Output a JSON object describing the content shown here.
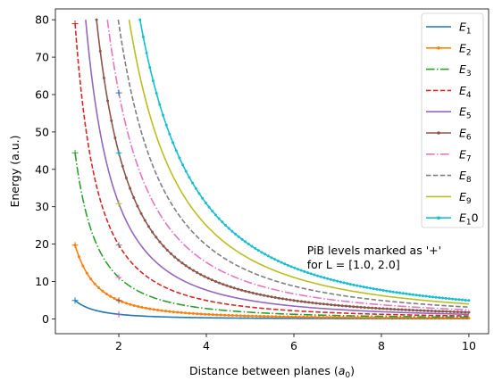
{
  "chart_data": {
    "type": "line",
    "xlabel": "Distance between planes (a0)",
    "ylabel": "Energy (a.u.)",
    "xlim": [
      0.55,
      10.45
    ],
    "ylim": [
      -3.95,
      82.9
    ],
    "xticks": [
      2,
      4,
      6,
      8,
      10
    ],
    "yticks": [
      0,
      10,
      20,
      30,
      40,
      50,
      60,
      70,
      80
    ],
    "legend_position": "top-right",
    "annotation": [
      "PiB levels marked as '+'",
      "for L = [1.0, 2.0]"
    ],
    "energy_model": "E_n(L) = 4.9348 * n^2 / L^2",
    "x_range": [
      1.0,
      10.0
    ],
    "energy_cap": 80,
    "series": [
      {
        "name": "E1",
        "legend_sub": "1",
        "n": 1,
        "color": "#1f77b4",
        "style": "solid",
        "markers": false
      },
      {
        "name": "E2",
        "legend_sub": "2",
        "n": 2,
        "color": "#ff7f0e",
        "style": "solid",
        "markers": true
      },
      {
        "name": "E3",
        "legend_sub": "3",
        "n": 3,
        "color": "#2ca02c",
        "style": "dashdot",
        "markers": false
      },
      {
        "name": "E4",
        "legend_sub": "4",
        "n": 4,
        "color": "#d62728",
        "style": "dashed",
        "markers": false
      },
      {
        "name": "E5",
        "legend_sub": "5",
        "n": 5,
        "color": "#9467bd",
        "style": "solid",
        "markers": false
      },
      {
        "name": "E6",
        "legend_sub": "6",
        "n": 6,
        "color": "#8c564b",
        "style": "solid",
        "markers": true
      },
      {
        "name": "E7",
        "legend_sub": "7",
        "n": 7,
        "color": "#e377c2",
        "style": "dashdot",
        "markers": false
      },
      {
        "name": "E8",
        "legend_sub": "8",
        "n": 8,
        "color": "#7f7f7f",
        "style": "dashed",
        "markers": false
      },
      {
        "name": "E9",
        "legend_sub": "9",
        "n": 9,
        "color": "#bcbd22",
        "style": "solid",
        "markers": false
      },
      {
        "name": "E10",
        "legend_sub": "1",
        "legend_tail": "0",
        "n": 10,
        "color": "#17becf",
        "style": "solid",
        "markers": true
      }
    ],
    "pib_points": [
      {
        "x": 1.0,
        "y": 4.93,
        "color": "#1f77b4"
      },
      {
        "x": 1.0,
        "y": 19.74,
        "color": "#ff7f0e"
      },
      {
        "x": 1.0,
        "y": 44.41,
        "color": "#2ca02c"
      },
      {
        "x": 1.0,
        "y": 78.96,
        "color": "#d62728"
      },
      {
        "x": 2.0,
        "y": 1.23,
        "color": "#9467bd"
      },
      {
        "x": 2.0,
        "y": 4.93,
        "color": "#8c564b"
      },
      {
        "x": 2.0,
        "y": 11.1,
        "color": "#e377c2"
      },
      {
        "x": 2.0,
        "y": 19.74,
        "color": "#7f7f7f"
      },
      {
        "x": 2.0,
        "y": 30.84,
        "color": "#bcbd22"
      },
      {
        "x": 2.0,
        "y": 44.41,
        "color": "#17becf"
      },
      {
        "x": 2.0,
        "y": 60.45,
        "color": "#1f77b4"
      }
    ]
  }
}
